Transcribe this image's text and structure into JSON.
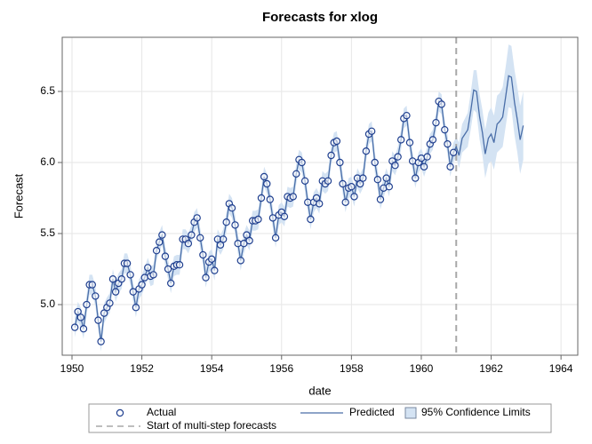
{
  "chart_data": {
    "type": "line",
    "title": "Forecasts for xlog",
    "xlabel": "date",
    "ylabel": "Forecast",
    "x": [
      1950.08,
      1950.17,
      1950.25,
      1950.33,
      1950.42,
      1950.5,
      1950.58,
      1950.67,
      1950.75,
      1950.83,
      1950.92,
      1951,
      1951.08,
      1951.17,
      1951.25,
      1951.33,
      1951.42,
      1951.5,
      1951.58,
      1951.67,
      1951.75,
      1951.83,
      1951.92,
      1952,
      1952.08,
      1952.17,
      1952.25,
      1952.33,
      1952.42,
      1952.5,
      1952.58,
      1952.67,
      1952.75,
      1952.83,
      1952.92,
      1953,
      1953.08,
      1953.17,
      1953.25,
      1953.33,
      1953.42,
      1953.5,
      1953.58,
      1953.67,
      1953.75,
      1953.83,
      1953.92,
      1954,
      1954.08,
      1954.17,
      1954.25,
      1954.33,
      1954.42,
      1954.5,
      1954.58,
      1954.67,
      1954.75,
      1954.83,
      1954.92,
      1955,
      1955.08,
      1955.17,
      1955.25,
      1955.33,
      1955.42,
      1955.5,
      1955.58,
      1955.67,
      1955.75,
      1955.83,
      1955.92,
      1956,
      1956.08,
      1956.17,
      1956.25,
      1956.33,
      1956.42,
      1956.5,
      1956.58,
      1956.67,
      1956.75,
      1956.83,
      1956.92,
      1957,
      1957.08,
      1957.17,
      1957.25,
      1957.33,
      1957.42,
      1957.5,
      1957.58,
      1957.67,
      1957.75,
      1957.83,
      1957.92,
      1958,
      1958.08,
      1958.17,
      1958.25,
      1958.33,
      1958.42,
      1958.5,
      1958.58,
      1958.67,
      1958.75,
      1958.83,
      1958.92,
      1959,
      1959.08,
      1959.17,
      1959.25,
      1959.33,
      1959.42,
      1959.5,
      1959.58,
      1959.67,
      1959.75,
      1959.83,
      1959.92,
      1960,
      1960.08,
      1960.17,
      1960.25,
      1960.33,
      1960.42,
      1960.5,
      1960.58,
      1960.67,
      1960.75,
      1960.83,
      1960.92,
      1961,
      1961.08,
      1961.17,
      1961.25,
      1961.33,
      1961.42,
      1961.5,
      1961.58,
      1961.67,
      1961.75,
      1961.83,
      1961.92,
      1962,
      1962.08,
      1962.17,
      1962.25,
      1962.33,
      1962.42,
      1962.5,
      1962.58,
      1962.67,
      1962.75,
      1962.83,
      1962.92
    ],
    "series": [
      {
        "name": "Actual",
        "color": "#1f3f8f",
        "marker": "circle",
        "values": [
          4.84,
          4.95,
          4.91,
          4.83,
          5.0,
          5.14,
          5.14,
          5.06,
          4.89,
          4.74,
          4.94,
          4.98,
          5.01,
          5.18,
          5.09,
          5.15,
          5.18,
          5.29,
          5.29,
          5.21,
          5.09,
          4.98,
          5.11,
          5.14,
          5.19,
          5.26,
          5.2,
          5.21,
          5.38,
          5.44,
          5.49,
          5.34,
          5.25,
          5.15,
          5.27,
          5.28,
          5.28,
          5.46,
          5.46,
          5.43,
          5.49,
          5.58,
          5.61,
          5.47,
          5.35,
          5.19,
          5.3,
          5.32,
          5.24,
          5.46,
          5.42,
          5.46,
          5.58,
          5.71,
          5.68,
          5.56,
          5.43,
          5.31,
          5.43,
          5.49,
          5.45,
          5.59,
          5.59,
          5.6,
          5.75,
          5.9,
          5.85,
          5.74,
          5.61,
          5.47,
          5.63,
          5.65,
          5.62,
          5.76,
          5.75,
          5.76,
          5.92,
          6.02,
          6.0,
          5.87,
          5.72,
          5.6,
          5.72,
          5.75,
          5.71,
          5.87,
          5.85,
          5.87,
          6.05,
          6.14,
          6.15,
          6.0,
          5.85,
          5.72,
          5.82,
          5.83,
          5.76,
          5.89,
          5.85,
          5.89,
          6.08,
          6.2,
          6.22,
          6.0,
          5.88,
          5.74,
          5.82,
          5.89,
          5.83,
          6.01,
          5.98,
          6.04,
          6.16,
          6.31,
          6.33,
          6.14,
          6.01,
          5.89,
          6.0,
          6.03,
          5.97,
          6.04,
          6.13,
          6.16,
          6.28,
          6.43,
          6.41,
          6.23,
          6.13,
          5.97,
          6.07,
          null,
          null,
          null,
          null,
          null,
          null,
          null,
          null,
          null,
          null,
          null,
          null,
          null,
          null,
          null,
          null,
          null,
          null,
          null,
          null,
          null,
          null,
          null,
          null
        ]
      },
      {
        "name": "Predicted",
        "color": "#4a6ea8",
        "values": [
          4.84,
          4.95,
          4.91,
          4.83,
          5.0,
          5.14,
          5.14,
          5.06,
          4.89,
          4.74,
          4.94,
          4.98,
          5.01,
          5.18,
          5.09,
          5.15,
          5.18,
          5.29,
          5.29,
          5.21,
          5.09,
          4.98,
          5.11,
          5.14,
          5.19,
          5.26,
          5.2,
          5.21,
          5.38,
          5.44,
          5.49,
          5.34,
          5.25,
          5.15,
          5.27,
          5.28,
          5.28,
          5.46,
          5.46,
          5.43,
          5.49,
          5.58,
          5.61,
          5.47,
          5.35,
          5.19,
          5.3,
          5.32,
          5.24,
          5.46,
          5.42,
          5.46,
          5.58,
          5.71,
          5.68,
          5.56,
          5.43,
          5.31,
          5.43,
          5.49,
          5.45,
          5.59,
          5.59,
          5.6,
          5.75,
          5.9,
          5.85,
          5.74,
          5.61,
          5.47,
          5.63,
          5.65,
          5.62,
          5.76,
          5.75,
          5.76,
          5.92,
          6.02,
          6.0,
          5.87,
          5.72,
          5.6,
          5.72,
          5.75,
          5.71,
          5.87,
          5.85,
          5.87,
          6.05,
          6.14,
          6.15,
          6.0,
          5.85,
          5.72,
          5.82,
          5.83,
          5.76,
          5.89,
          5.85,
          5.89,
          6.08,
          6.2,
          6.22,
          6.0,
          5.88,
          5.74,
          5.82,
          5.89,
          5.83,
          6.01,
          5.98,
          6.04,
          6.16,
          6.31,
          6.33,
          6.14,
          6.01,
          5.89,
          6.0,
          6.03,
          5.97,
          6.04,
          6.13,
          6.16,
          6.28,
          6.43,
          6.41,
          6.23,
          6.13,
          5.97,
          6.07,
          6.11,
          6.05,
          6.17,
          6.2,
          6.23,
          6.37,
          6.51,
          6.5,
          6.32,
          6.21,
          6.06,
          6.17,
          6.2,
          6.14,
          6.27,
          6.29,
          6.32,
          6.47,
          6.61,
          6.6,
          6.42,
          6.3,
          6.16,
          6.26
        ]
      }
    ],
    "band": {
      "name": "95% Confidence Limits",
      "color": "#d4e3f3",
      "edge_color": "#7a8aa0",
      "lower": [
        4.77,
        4.88,
        4.84,
        4.76,
        4.93,
        5.07,
        5.07,
        4.99,
        4.82,
        4.67,
        4.87,
        4.91,
        4.94,
        5.11,
        5.02,
        5.08,
        5.11,
        5.22,
        5.22,
        5.14,
        5.02,
        4.91,
        5.04,
        5.07,
        5.12,
        5.19,
        5.13,
        5.14,
        5.31,
        5.37,
        5.42,
        5.27,
        5.18,
        5.08,
        5.2,
        5.21,
        5.21,
        5.39,
        5.39,
        5.36,
        5.42,
        5.51,
        5.54,
        5.4,
        5.28,
        5.12,
        5.23,
        5.25,
        5.17,
        5.39,
        5.35,
        5.39,
        5.51,
        5.64,
        5.61,
        5.49,
        5.36,
        5.24,
        5.36,
        5.42,
        5.38,
        5.52,
        5.52,
        5.53,
        5.68,
        5.83,
        5.78,
        5.67,
        5.54,
        5.4,
        5.56,
        5.58,
        5.55,
        5.69,
        5.68,
        5.69,
        5.85,
        5.95,
        5.93,
        5.8,
        5.65,
        5.53,
        5.65,
        5.68,
        5.64,
        5.8,
        5.78,
        5.8,
        5.98,
        6.07,
        6.08,
        5.93,
        5.78,
        5.65,
        5.75,
        5.76,
        5.69,
        5.82,
        5.78,
        5.82,
        6.01,
        6.13,
        6.15,
        5.93,
        5.81,
        5.67,
        5.75,
        5.82,
        5.76,
        5.94,
        5.91,
        5.97,
        6.09,
        6.24,
        6.26,
        6.07,
        5.94,
        5.82,
        5.93,
        5.96,
        5.9,
        5.97,
        6.06,
        6.09,
        6.21,
        6.36,
        6.34,
        6.16,
        6.06,
        5.9,
        6.0,
        6.04,
        5.96,
        6.07,
        6.09,
        6.11,
        6.24,
        6.37,
        6.35,
        6.16,
        6.05,
        5.89,
        5.99,
        6.01,
        5.95,
        6.07,
        6.09,
        6.11,
        6.26,
        6.39,
        6.38,
        6.19,
        6.07,
        5.92,
        6.02
      ],
      "upper": [
        4.91,
        5.02,
        4.98,
        4.9,
        5.07,
        5.21,
        5.21,
        5.13,
        4.96,
        4.81,
        5.01,
        5.05,
        5.08,
        5.25,
        5.16,
        5.22,
        5.25,
        5.36,
        5.36,
        5.28,
        5.16,
        5.05,
        5.18,
        5.21,
        5.26,
        5.33,
        5.27,
        5.28,
        5.45,
        5.51,
        5.56,
        5.41,
        5.32,
        5.22,
        5.34,
        5.35,
        5.35,
        5.53,
        5.53,
        5.5,
        5.56,
        5.65,
        5.68,
        5.54,
        5.42,
        5.26,
        5.37,
        5.39,
        5.31,
        5.53,
        5.49,
        5.53,
        5.65,
        5.78,
        5.75,
        5.63,
        5.5,
        5.38,
        5.5,
        5.56,
        5.52,
        5.66,
        5.66,
        5.67,
        5.82,
        5.97,
        5.92,
        5.81,
        5.68,
        5.54,
        5.7,
        5.72,
        5.69,
        5.83,
        5.82,
        5.83,
        5.99,
        6.09,
        6.07,
        5.94,
        5.79,
        5.67,
        5.79,
        5.82,
        5.78,
        5.94,
        5.92,
        5.94,
        6.12,
        6.21,
        6.22,
        6.07,
        5.92,
        5.79,
        5.89,
        5.9,
        5.83,
        5.96,
        5.92,
        5.96,
        6.15,
        6.27,
        6.29,
        6.07,
        5.95,
        5.81,
        5.89,
        5.96,
        5.9,
        6.08,
        6.05,
        6.11,
        6.23,
        6.38,
        6.4,
        6.21,
        6.08,
        5.96,
        6.07,
        6.1,
        6.04,
        6.11,
        6.2,
        6.23,
        6.35,
        6.5,
        6.48,
        6.3,
        6.2,
        6.04,
        6.14,
        6.18,
        6.14,
        6.27,
        6.31,
        6.35,
        6.5,
        6.65,
        6.65,
        6.48,
        6.37,
        6.23,
        6.35,
        6.39,
        6.33,
        6.47,
        6.49,
        6.53,
        6.68,
        6.83,
        6.82,
        6.65,
        6.53,
        6.4,
        6.5
      ]
    },
    "reference_line": {
      "x": 1961,
      "label": "Start of multi-step forecasts",
      "color": "#a8a8a8"
    },
    "xlim": [
      1949.72,
      1964.48
    ],
    "ylim": [
      4.644,
      6.881
    ],
    "xticks": [
      1950,
      1952,
      1954,
      1956,
      1958,
      1960,
      1962,
      1964
    ],
    "yticks": [
      {
        "value": 5,
        "label": "5.0"
      },
      5.5,
      {
        "value": 6,
        "label": "6.0"
      },
      6.5
    ],
    "grid": true
  }
}
